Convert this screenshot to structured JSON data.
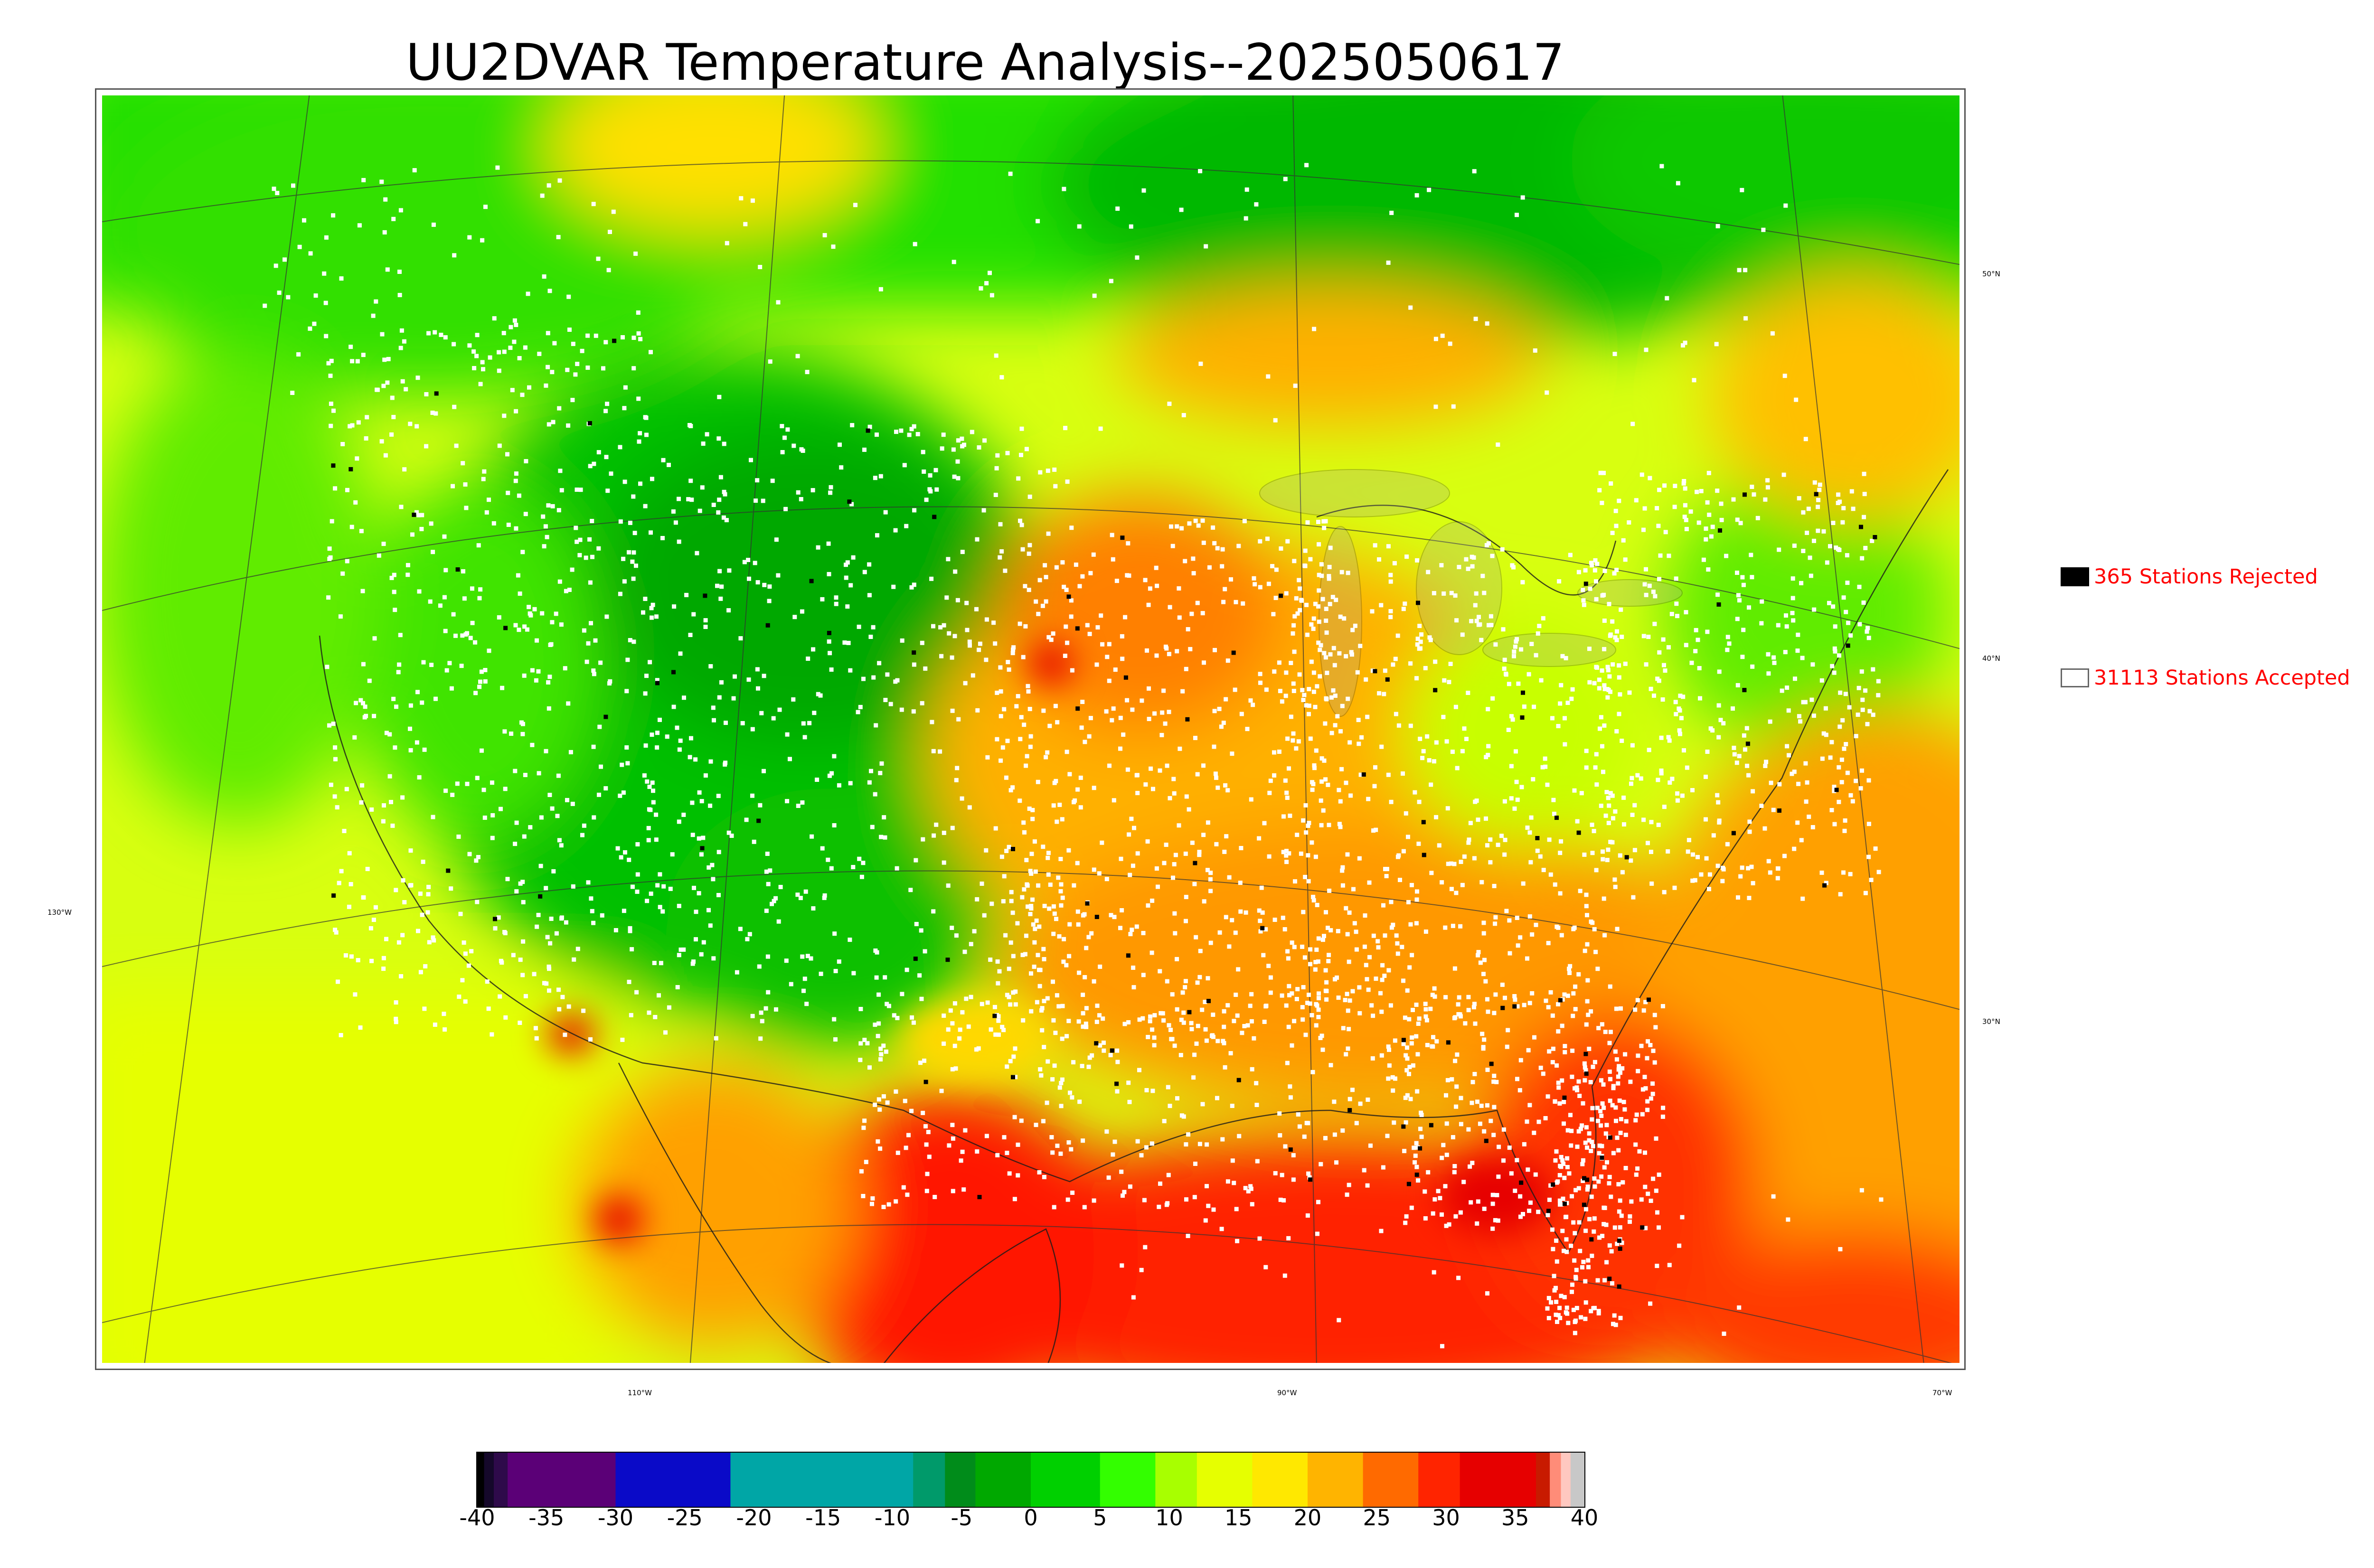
{
  "title": "UU2DVAR Temperature Analysis--2025050617",
  "map": {
    "longitude_labels": [
      "110°W",
      "90°W",
      "70°W"
    ],
    "latitude_labels": [
      "50°N",
      "40°N",
      "30°N"
    ],
    "west_label": "130°W"
  },
  "legend": {
    "rejected_label": "365 Stations Rejected",
    "accepted_label": "31113 Stations Accepted",
    "text_color": "#ff0000"
  },
  "colorbar": {
    "tick_labels": [
      "-40",
      "-35",
      "-30",
      "-25",
      "-20",
      "-15",
      "-10",
      "-5",
      "0",
      "5",
      "10",
      "15",
      "20",
      "25",
      "30",
      "35",
      "40"
    ],
    "range": [
      -40,
      40
    ],
    "segments": [
      {
        "from": -40,
        "to": -39.5,
        "color": "#000000"
      },
      {
        "from": -39.5,
        "to": -38.8,
        "color": "#15082a"
      },
      {
        "from": -38.8,
        "to": -37.8,
        "color": "#2e0a4a"
      },
      {
        "from": -37.8,
        "to": -30,
        "color": "#5b0077"
      },
      {
        "from": -30,
        "to": -21.7,
        "color": "#0a0ac8"
      },
      {
        "from": -21.7,
        "to": -8.5,
        "color": "#00a6a6"
      },
      {
        "from": -8.5,
        "to": -6.2,
        "color": "#009a6a"
      },
      {
        "from": -6.2,
        "to": -4,
        "color": "#008c1a"
      },
      {
        "from": -4,
        "to": 0,
        "color": "#00a800"
      },
      {
        "from": 0,
        "to": 5,
        "color": "#00d000"
      },
      {
        "from": 5,
        "to": 9,
        "color": "#33ff00"
      },
      {
        "from": 9,
        "to": 12,
        "color": "#a8ff00"
      },
      {
        "from": 12,
        "to": 16,
        "color": "#e6ff00"
      },
      {
        "from": 16,
        "to": 20,
        "color": "#ffe800"
      },
      {
        "from": 20,
        "to": 24,
        "color": "#ffb400"
      },
      {
        "from": 24,
        "to": 28,
        "color": "#ff6a00"
      },
      {
        "from": 28,
        "to": 31,
        "color": "#ff2400"
      },
      {
        "from": 31,
        "to": 36.5,
        "color": "#e60000"
      },
      {
        "from": 36.5,
        "to": 37.5,
        "color": "#c81a00"
      },
      {
        "from": 37.5,
        "to": 38.3,
        "color": "#ff8c78"
      },
      {
        "from": 38.3,
        "to": 39,
        "color": "#ffc8c0"
      },
      {
        "from": 39,
        "to": 40,
        "color": "#c8c8c8"
      }
    ]
  },
  "colors": {
    "frame": "#555555",
    "cold_green": "#00c800",
    "mild_yellow": "#e6ff00",
    "warm_orange": "#ffb000",
    "hot_red": "#ff2000",
    "station_accepted": "#ffffff",
    "station_rejected": "#000000"
  }
}
